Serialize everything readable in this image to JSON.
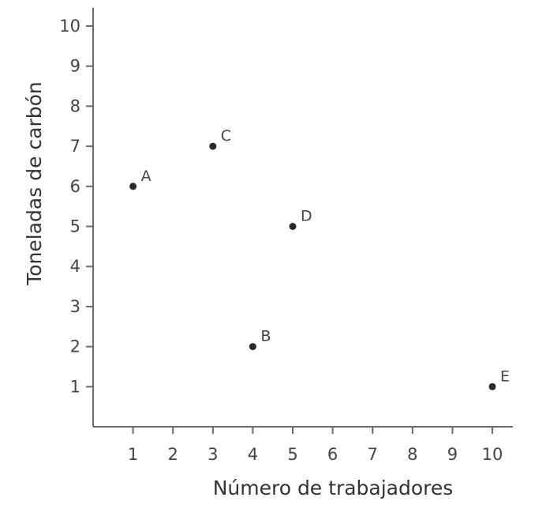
{
  "chart_data": {
    "type": "scatter",
    "title": "",
    "xlabel": "Número de trabajadores",
    "ylabel": "Toneladas de carbón",
    "xlim": [
      0,
      10.5
    ],
    "ylim": [
      0,
      10.5
    ],
    "x_ticks": [
      "1",
      "2",
      "3",
      "4",
      "5",
      "6",
      "7",
      "8",
      "9",
      "10"
    ],
    "y_ticks": [
      "1",
      "2",
      "3",
      "4",
      "5",
      "6",
      "7",
      "8",
      "9",
      "10"
    ],
    "grid": false,
    "points": [
      {
        "label": "A",
        "x": 1,
        "y": 6
      },
      {
        "label": "B",
        "x": 4,
        "y": 2
      },
      {
        "label": "C",
        "x": 3,
        "y": 7
      },
      {
        "label": "D",
        "x": 5,
        "y": 5
      },
      {
        "label": "E",
        "x": 10,
        "y": 1
      }
    ]
  }
}
